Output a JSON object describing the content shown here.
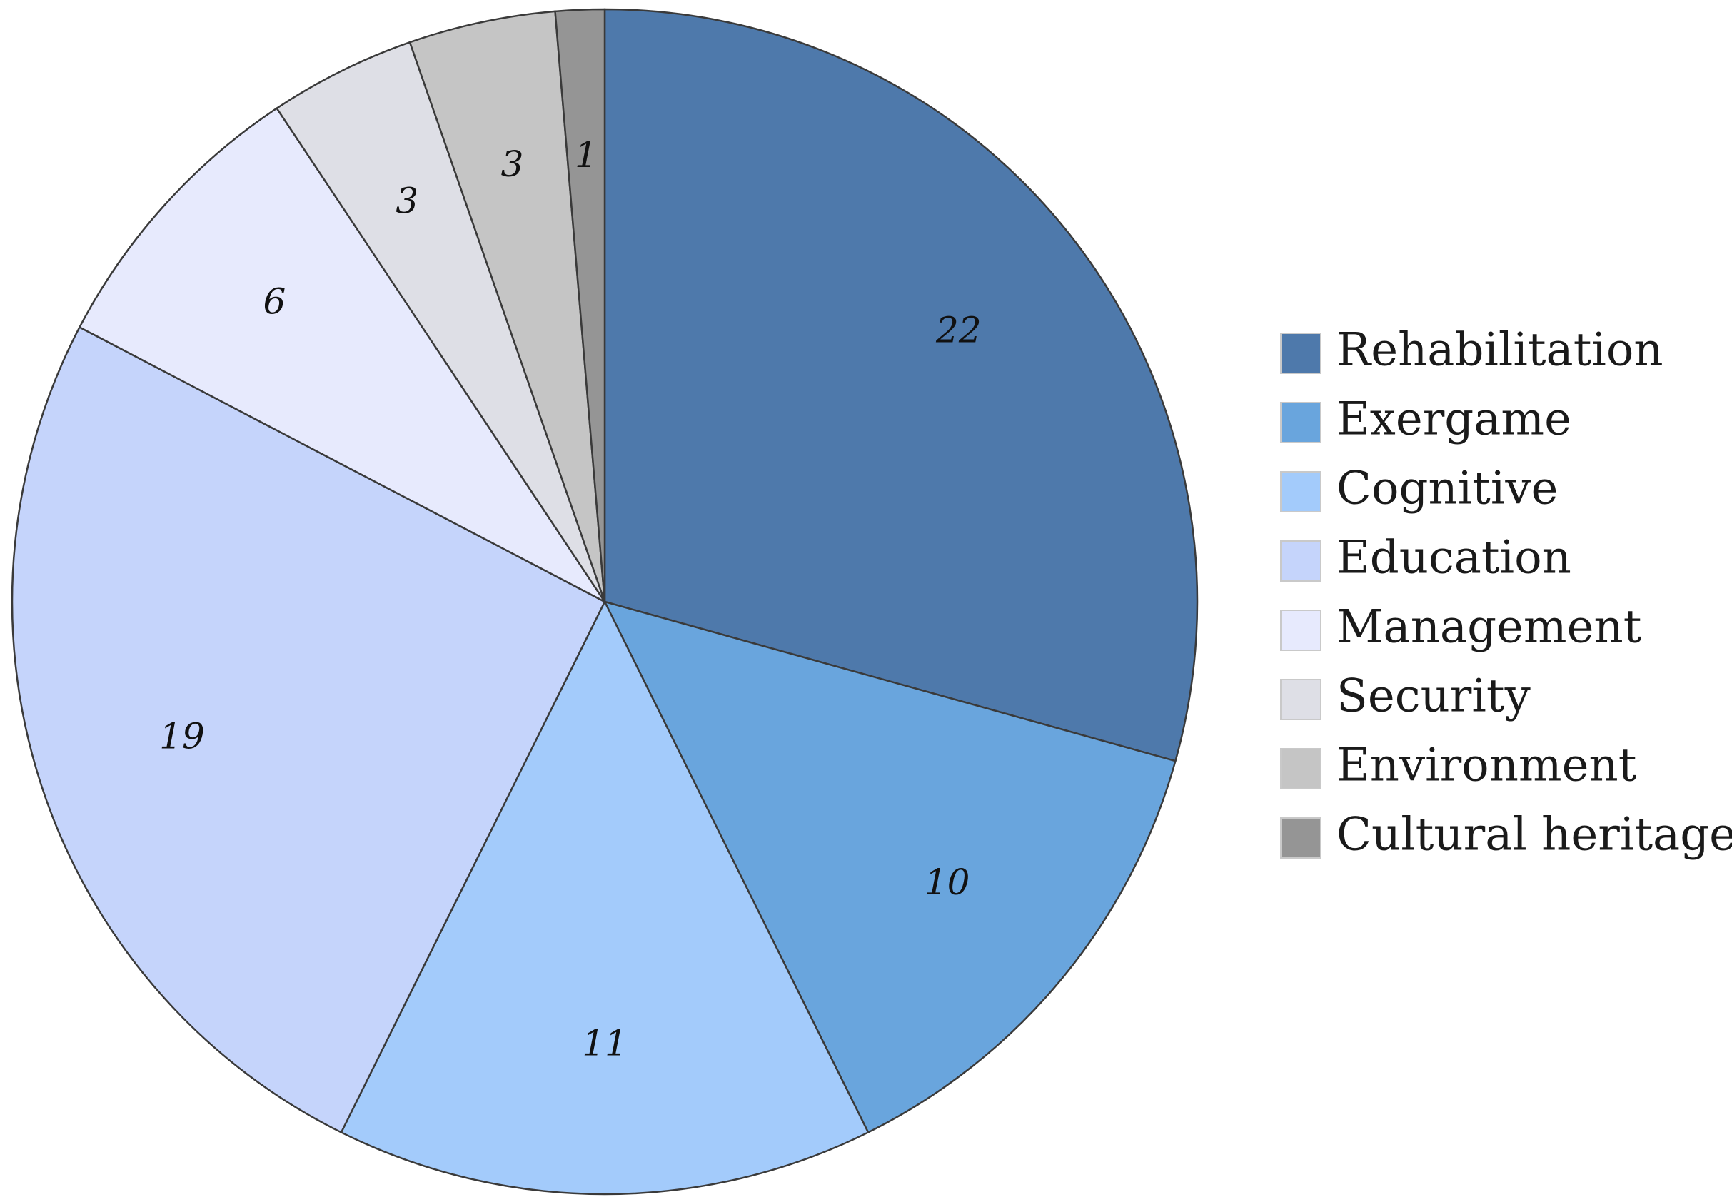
{
  "chart_data": {
    "type": "pie",
    "categories": [
      "Rehabilitation",
      "Exergame",
      "Cognitive",
      "Education",
      "Management",
      "Security",
      "Environment",
      "Cultural heritage"
    ],
    "values": [
      22,
      10,
      11,
      19,
      6,
      3,
      3,
      1
    ],
    "colors": [
      "#4e79ab",
      "#69a5dd",
      "#a3cbfb",
      "#c5d4fb",
      "#e7eafd",
      "#dedfe6",
      "#c5c5c5",
      "#959595"
    ],
    "start_angle": "12 o'clock",
    "direction": "clockwise",
    "legend_position": "right",
    "data_labels": true
  }
}
